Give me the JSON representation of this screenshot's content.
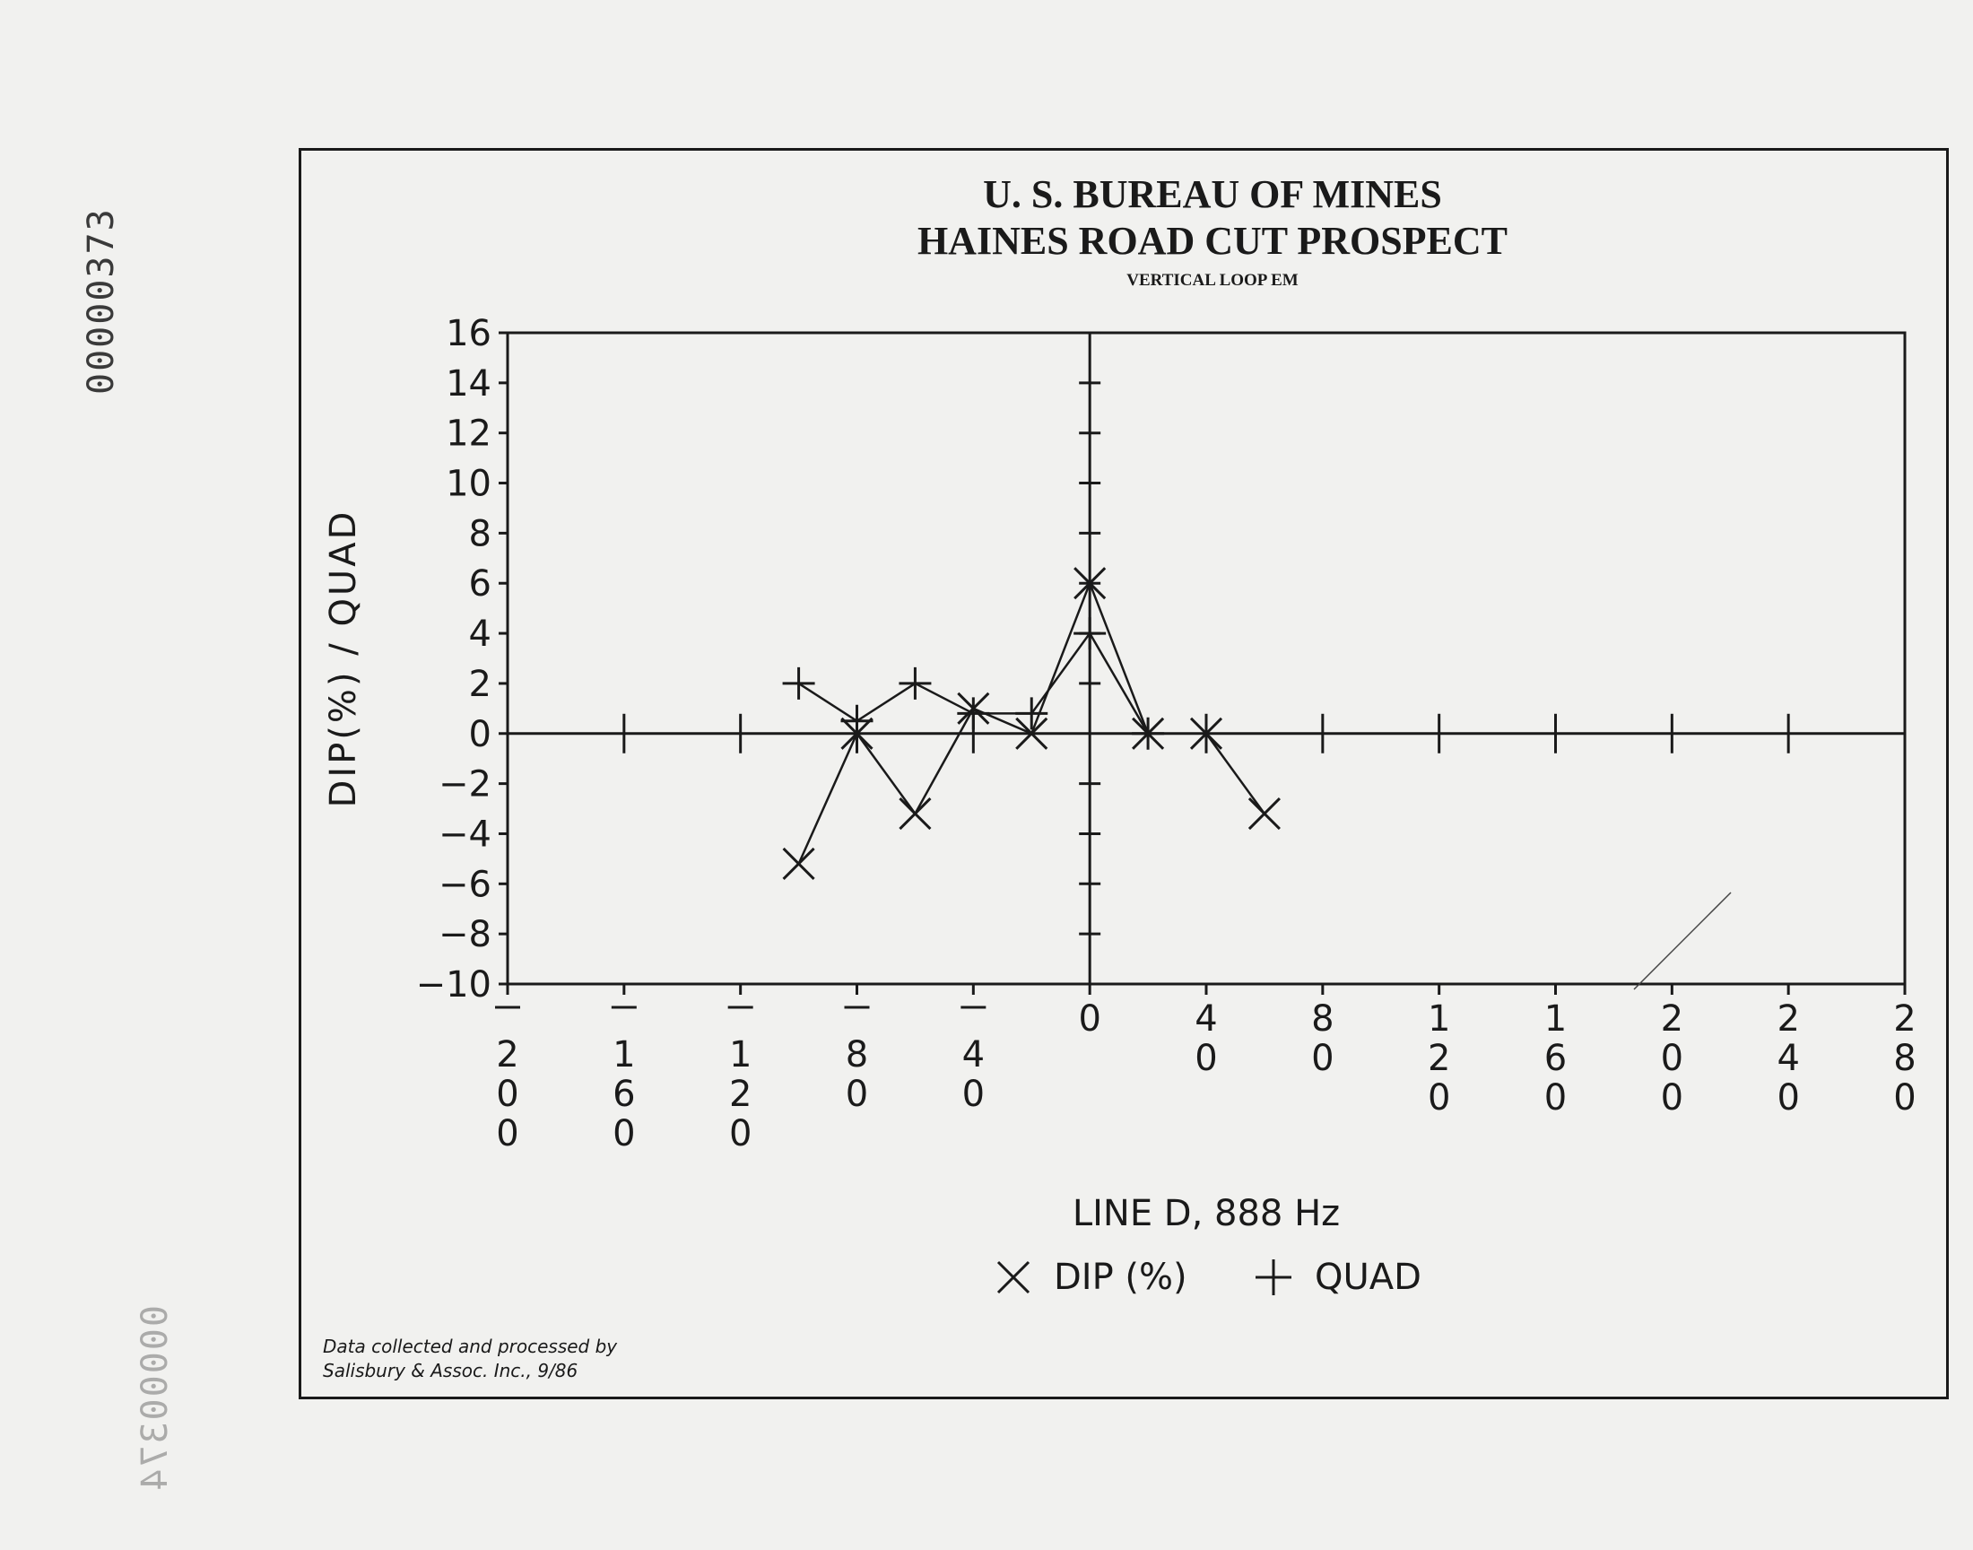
{
  "document": {
    "stamp_top": "00000373",
    "stamp_faint": "00000374",
    "credit_line1": "Data collected and processed by",
    "credit_line2": "Salisbury & Assoc. Inc., 9/86"
  },
  "chart_data": {
    "type": "line",
    "title": "U. S. BUREAU OF MINES",
    "subtitle": "HAINES ROAD CUT PROSPECT",
    "subtitle2": "VERTICAL LOOP EM",
    "xlabel": "LINE D, 888 Hz",
    "ylabel": "DIP(%) / QUAD",
    "xlim": [
      -200,
      280
    ],
    "ylim": [
      -10,
      16
    ],
    "yticks": [
      -10,
      -8,
      -6,
      -4,
      -2,
      0,
      2,
      4,
      6,
      8,
      10,
      12,
      14,
      16
    ],
    "xticks": [
      -200,
      -160,
      -120,
      -80,
      -40,
      0,
      40,
      80,
      120,
      160,
      200,
      240,
      280
    ],
    "xtick_labels": [
      "-200",
      "-160",
      "-120",
      "-80",
      "-40",
      "0",
      "40",
      "80",
      "120",
      "160",
      "200",
      "240",
      "280"
    ],
    "grid": false,
    "legend_position": "bottom",
    "series": [
      {
        "name": "DIP (%)",
        "marker": "x",
        "x": [
          -100,
          -80,
          -60,
          -40,
          -20,
          0,
          20,
          40,
          60
        ],
        "y": [
          -5.2,
          0,
          -3.2,
          1,
          0,
          6,
          0,
          0,
          -3.2
        ]
      },
      {
        "name": "QUAD",
        "marker": "+",
        "x": [
          -100,
          -80,
          -60,
          -40,
          -20,
          0,
          20
        ],
        "y": [
          2,
          0.5,
          2,
          0.8,
          0.8,
          4,
          0
        ]
      }
    ]
  }
}
